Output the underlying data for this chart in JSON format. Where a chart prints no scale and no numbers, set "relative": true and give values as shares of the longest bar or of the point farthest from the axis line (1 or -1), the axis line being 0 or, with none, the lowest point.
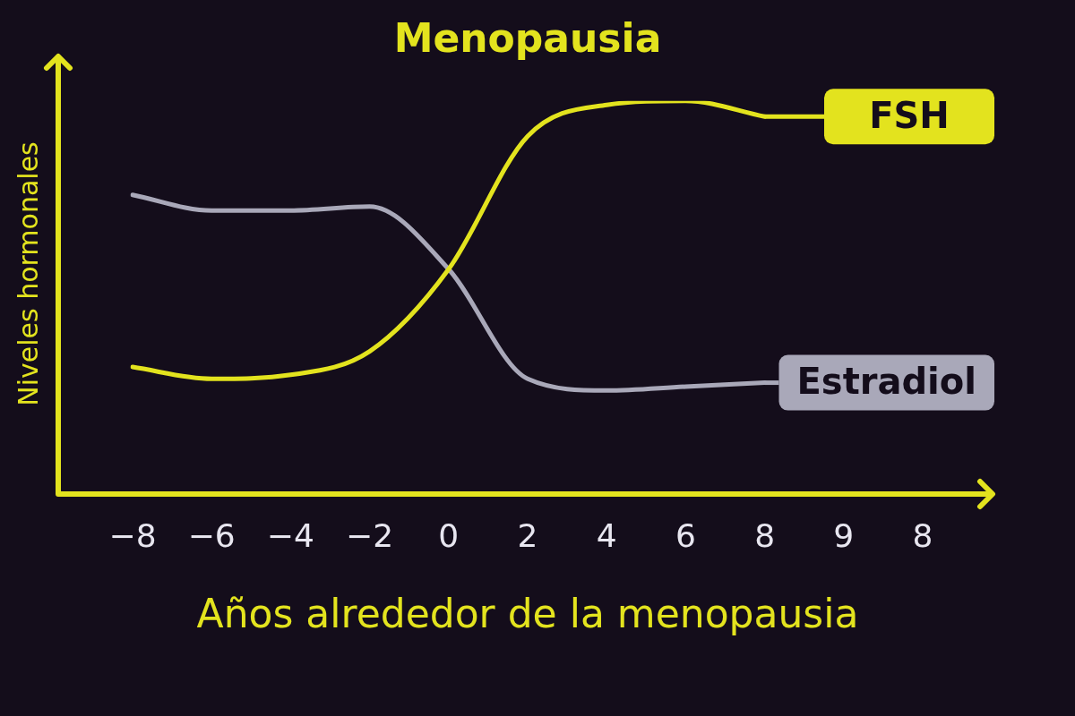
{
  "chart_data": {
    "type": "line",
    "title": "Menopausia",
    "xlabel": "Años alrededor de la menopausia",
    "ylabel": "Niveles hormonales",
    "relative": true,
    "categories": [
      "−8",
      "−6",
      "−4",
      "−2",
      "0",
      "2",
      "4",
      "6",
      "8",
      "9",
      "8"
    ],
    "series": [
      {
        "name": "FSH",
        "color": "#e3e31e",
        "values": [
          0.32,
          0.29,
          0.3,
          0.36,
          0.57,
          0.91,
          0.99,
          1,
          0.96,
          null,
          null
        ]
      },
      {
        "name": "Estradiol",
        "color": "#a9a8b9",
        "values": [
          0.76,
          0.72,
          0.72,
          0.73,
          0.57,
          0.29,
          0.26,
          0.27,
          0.28,
          null,
          null
        ]
      }
    ],
    "legend": "right",
    "marker": "none",
    "line_style": "solid"
  }
}
